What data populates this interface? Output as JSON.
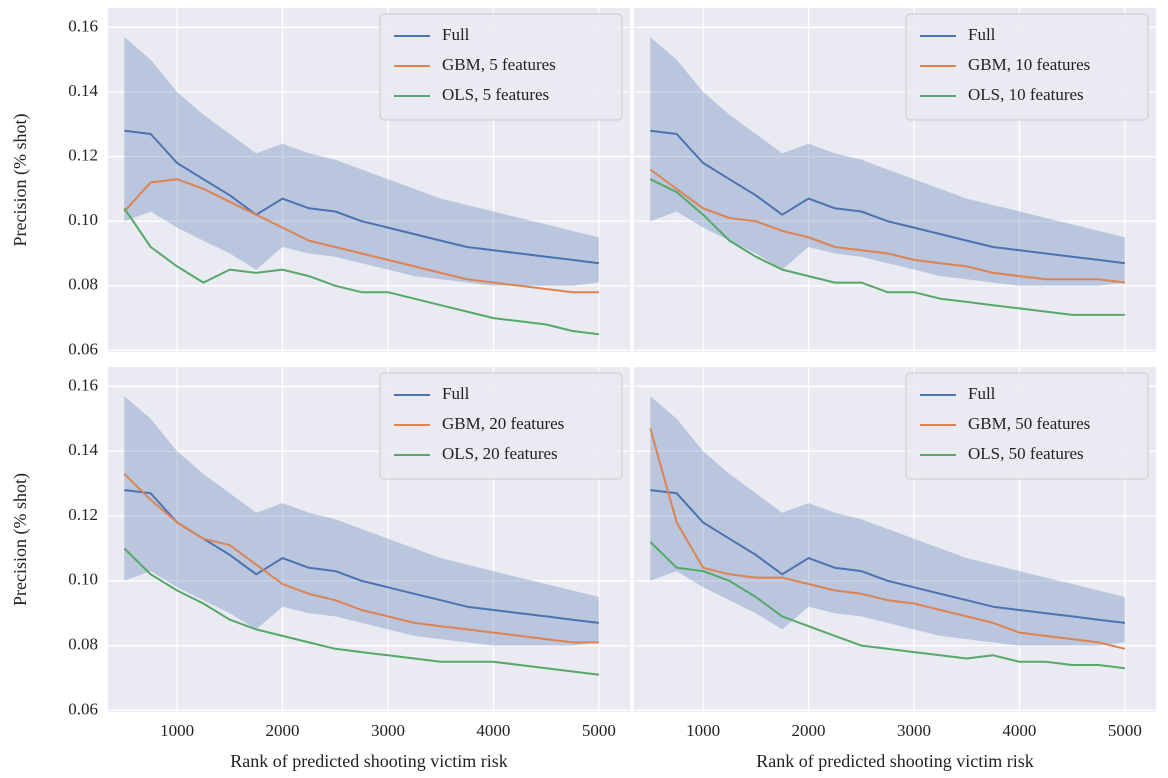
{
  "chart_data": [
    {
      "type": "line",
      "ylabel": "Precision (% shot)",
      "x": [
        500,
        750,
        1000,
        1250,
        1500,
        1750,
        2000,
        2250,
        2500,
        2750,
        3000,
        3250,
        3500,
        3750,
        4000,
        4250,
        4500,
        4750,
        5000
      ],
      "xlim": [
        345,
        5295
      ],
      "ylim": [
        0.0595,
        0.166
      ],
      "xticks": [
        1000,
        2000,
        3000,
        4000,
        5000
      ],
      "yticks": [
        0.06,
        0.08,
        {
          "value": 0.1,
          "label": "0.10"
        },
        0.12,
        0.14,
        0.16
      ],
      "grid": true,
      "legend": "upper right",
      "series": [
        {
          "name": "Full",
          "color": "#4c72b0",
          "values": [
            0.128,
            0.127,
            0.118,
            0.113,
            0.108,
            0.102,
            0.107,
            0.104,
            0.103,
            0.1,
            0.098,
            0.096,
            0.094,
            0.092,
            0.091,
            0.09,
            0.089,
            0.088,
            0.087
          ],
          "band_upper": [
            0.157,
            0.15,
            0.14,
            0.133,
            0.127,
            0.121,
            0.124,
            0.121,
            0.119,
            0.116,
            0.113,
            0.11,
            0.107,
            0.105,
            0.103,
            0.101,
            0.099,
            0.097,
            0.095
          ],
          "band_lower": [
            0.1,
            0.103,
            0.098,
            0.094,
            0.09,
            0.085,
            0.092,
            0.09,
            0.089,
            0.087,
            0.085,
            0.083,
            0.082,
            0.081,
            0.08,
            0.08,
            0.08,
            0.08,
            0.081
          ]
        },
        {
          "name": "GBM, 5 features",
          "color": "#dd8452",
          "values": [
            0.103,
            0.112,
            0.113,
            0.11,
            0.106,
            0.102,
            0.098,
            0.094,
            0.092,
            0.09,
            0.088,
            0.086,
            0.084,
            0.082,
            0.081,
            0.08,
            0.079,
            0.078,
            0.078
          ]
        },
        {
          "name": "OLS, 5 features",
          "color": "#55a868",
          "values": [
            0.104,
            0.092,
            0.086,
            0.081,
            0.085,
            0.084,
            0.085,
            0.083,
            0.08,
            0.078,
            0.078,
            0.076,
            0.074,
            0.072,
            0.07,
            0.069,
            0.068,
            0.066,
            0.065
          ]
        }
      ]
    },
    {
      "type": "line",
      "x": [
        500,
        750,
        1000,
        1250,
        1500,
        1750,
        2000,
        2250,
        2500,
        2750,
        3000,
        3250,
        3500,
        3750,
        4000,
        4250,
        4500,
        4750,
        5000
      ],
      "xlim": [
        345,
        5295
      ],
      "ylim": [
        0.0595,
        0.166
      ],
      "xticks": [
        1000,
        2000,
        3000,
        4000,
        5000
      ],
      "yticks": [
        0.06,
        0.08,
        {
          "value": 0.1,
          "label": "0.10"
        },
        0.12,
        0.14,
        0.16
      ],
      "grid": true,
      "legend": "upper right",
      "series": [
        {
          "name": "Full",
          "color": "#4c72b0",
          "values": [
            0.128,
            0.127,
            0.118,
            0.113,
            0.108,
            0.102,
            0.107,
            0.104,
            0.103,
            0.1,
            0.098,
            0.096,
            0.094,
            0.092,
            0.091,
            0.09,
            0.089,
            0.088,
            0.087
          ],
          "band_upper": [
            0.157,
            0.15,
            0.14,
            0.133,
            0.127,
            0.121,
            0.124,
            0.121,
            0.119,
            0.116,
            0.113,
            0.11,
            0.107,
            0.105,
            0.103,
            0.101,
            0.099,
            0.097,
            0.095
          ],
          "band_lower": [
            0.1,
            0.103,
            0.098,
            0.094,
            0.09,
            0.085,
            0.092,
            0.09,
            0.089,
            0.087,
            0.085,
            0.083,
            0.082,
            0.081,
            0.08,
            0.08,
            0.08,
            0.08,
            0.081
          ]
        },
        {
          "name": "GBM, 10 features",
          "color": "#dd8452",
          "values": [
            0.116,
            0.11,
            0.104,
            0.101,
            0.1,
            0.097,
            0.095,
            0.092,
            0.091,
            0.09,
            0.088,
            0.087,
            0.086,
            0.084,
            0.083,
            0.082,
            0.082,
            0.082,
            0.081
          ]
        },
        {
          "name": "OLS, 10 features",
          "color": "#55a868",
          "values": [
            0.113,
            0.109,
            0.102,
            0.094,
            0.089,
            0.085,
            0.083,
            0.081,
            0.081,
            0.078,
            0.078,
            0.076,
            0.075,
            0.074,
            0.073,
            0.072,
            0.071,
            0.071,
            0.071
          ]
        }
      ]
    },
    {
      "type": "line",
      "ylabel": "Precision (% shot)",
      "xlabel": "Rank of predicted shooting victim risk",
      "x": [
        500,
        750,
        1000,
        1250,
        1500,
        1750,
        2000,
        2250,
        2500,
        2750,
        3000,
        3250,
        3500,
        3750,
        4000,
        4250,
        4500,
        4750,
        5000
      ],
      "xlim": [
        345,
        5295
      ],
      "ylim": [
        0.0595,
        0.166
      ],
      "xticks": [
        1000,
        2000,
        3000,
        4000,
        5000
      ],
      "yticks": [
        0.06,
        0.08,
        {
          "value": 0.1,
          "label": "0.10"
        },
        0.12,
        0.14,
        0.16
      ],
      "grid": true,
      "legend": "upper right",
      "series": [
        {
          "name": "Full",
          "color": "#4c72b0",
          "values": [
            0.128,
            0.127,
            0.118,
            0.113,
            0.108,
            0.102,
            0.107,
            0.104,
            0.103,
            0.1,
            0.098,
            0.096,
            0.094,
            0.092,
            0.091,
            0.09,
            0.089,
            0.088,
            0.087
          ],
          "band_upper": [
            0.157,
            0.15,
            0.14,
            0.133,
            0.127,
            0.121,
            0.124,
            0.121,
            0.119,
            0.116,
            0.113,
            0.11,
            0.107,
            0.105,
            0.103,
            0.101,
            0.099,
            0.097,
            0.095
          ],
          "band_lower": [
            0.1,
            0.103,
            0.098,
            0.094,
            0.09,
            0.085,
            0.092,
            0.09,
            0.089,
            0.087,
            0.085,
            0.083,
            0.082,
            0.081,
            0.08,
            0.08,
            0.08,
            0.08,
            0.081
          ]
        },
        {
          "name": "GBM, 20 features",
          "color": "#dd8452",
          "values": [
            0.133,
            0.125,
            0.118,
            0.113,
            0.111,
            0.105,
            0.099,
            0.096,
            0.094,
            0.091,
            0.089,
            0.087,
            0.086,
            0.085,
            0.084,
            0.083,
            0.082,
            0.081,
            0.081
          ]
        },
        {
          "name": "OLS, 20 features",
          "color": "#55a868",
          "values": [
            0.11,
            0.102,
            0.097,
            0.093,
            0.088,
            0.085,
            0.083,
            0.081,
            0.079,
            0.078,
            0.077,
            0.076,
            0.075,
            0.075,
            0.075,
            0.074,
            0.073,
            0.072,
            0.071
          ]
        }
      ]
    },
    {
      "type": "line",
      "xlabel": "Rank of predicted shooting victim risk",
      "x": [
        500,
        750,
        1000,
        1250,
        1500,
        1750,
        2000,
        2250,
        2500,
        2750,
        3000,
        3250,
        3500,
        3750,
        4000,
        4250,
        4500,
        4750,
        5000
      ],
      "xlim": [
        345,
        5295
      ],
      "ylim": [
        0.0595,
        0.166
      ],
      "xticks": [
        1000,
        2000,
        3000,
        4000,
        5000
      ],
      "yticks": [
        0.06,
        0.08,
        {
          "value": 0.1,
          "label": "0.10"
        },
        0.12,
        0.14,
        0.16
      ],
      "grid": true,
      "legend": "upper right",
      "series": [
        {
          "name": "Full",
          "color": "#4c72b0",
          "values": [
            0.128,
            0.127,
            0.118,
            0.113,
            0.108,
            0.102,
            0.107,
            0.104,
            0.103,
            0.1,
            0.098,
            0.096,
            0.094,
            0.092,
            0.091,
            0.09,
            0.089,
            0.088,
            0.087
          ],
          "band_upper": [
            0.157,
            0.15,
            0.14,
            0.133,
            0.127,
            0.121,
            0.124,
            0.121,
            0.119,
            0.116,
            0.113,
            0.11,
            0.107,
            0.105,
            0.103,
            0.101,
            0.099,
            0.097,
            0.095
          ],
          "band_lower": [
            0.1,
            0.103,
            0.098,
            0.094,
            0.09,
            0.085,
            0.092,
            0.09,
            0.089,
            0.087,
            0.085,
            0.083,
            0.082,
            0.081,
            0.08,
            0.08,
            0.08,
            0.08,
            0.081
          ]
        },
        {
          "name": "GBM, 50 features",
          "color": "#dd8452",
          "values": [
            0.147,
            0.118,
            0.104,
            0.102,
            0.101,
            0.101,
            0.099,
            0.097,
            0.096,
            0.094,
            0.093,
            0.091,
            0.089,
            0.087,
            0.084,
            0.083,
            0.082,
            0.081,
            0.079
          ]
        },
        {
          "name": "OLS, 50 features",
          "color": "#55a868",
          "values": [
            0.112,
            0.104,
            0.103,
            0.1,
            0.095,
            0.089,
            0.086,
            0.083,
            0.08,
            0.079,
            0.078,
            0.077,
            0.076,
            0.077,
            0.075,
            0.075,
            0.074,
            0.074,
            0.073
          ]
        }
      ]
    }
  ]
}
